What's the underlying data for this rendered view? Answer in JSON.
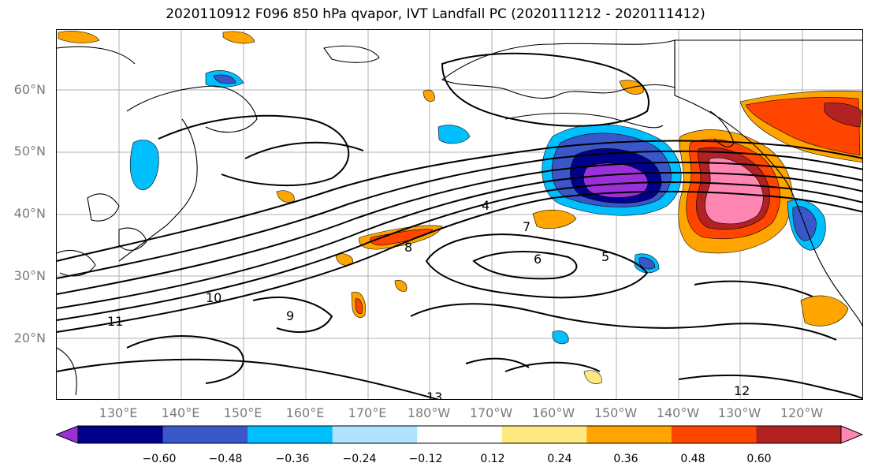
{
  "title": "2020110912 F096 850 hPa qvapor, IVT Landfall PC (2020111212 - 2020111412)",
  "latitude_labels": [
    "60°N",
    "50°N",
    "40°N",
    "30°N",
    "20°N"
  ],
  "longitude_labels": [
    "130°E",
    "140°E",
    "150°E",
    "160°E",
    "170°E",
    "180°W",
    "170°W",
    "160°W",
    "150°W",
    "140°W",
    "130°W",
    "120°W"
  ],
  "colorbar": {
    "tick_labels": [
      "−0.60",
      "−0.48",
      "−0.36",
      "−0.24",
      "−0.12",
      "0.12",
      "0.24",
      "0.36",
      "0.48",
      "0.60"
    ],
    "colors": [
      "#9b30d9",
      "#00008b",
      "#3a57c9",
      "#00bfff",
      "#b0e2ff",
      "#ffffff",
      "#ffe880",
      "#ffa500",
      "#ff4500",
      "#b22222",
      "#ff85b3"
    ]
  },
  "contour_labels": [
    "4",
    "5",
    "6",
    "7",
    "8",
    "9",
    "10",
    "11",
    "12",
    "13"
  ],
  "colors": {
    "land_outline": "#000000",
    "grid": "#b0b0b0",
    "tick_label": "#7a7a7a"
  }
}
